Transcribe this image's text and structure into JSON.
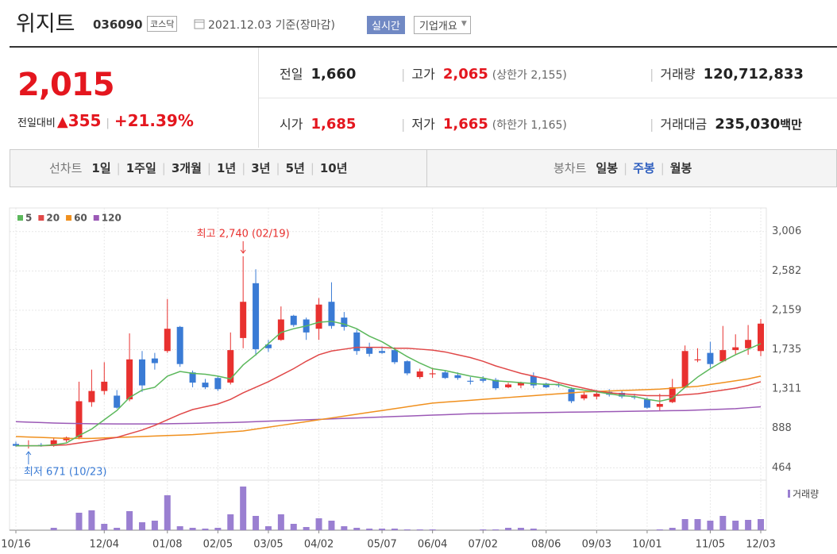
{
  "header": {
    "title": "위지트",
    "code": "036090",
    "market": "코스닥",
    "date": "2021.12.03 기준(장마감)",
    "buttons": [
      "실시간",
      "기업개요"
    ]
  },
  "summary": {
    "price": "2,015",
    "change_label": "전일대비",
    "change": "355",
    "change_pct": "+21.39%",
    "rows": [
      [
        {
          "label": "전일",
          "value": "1,660"
        },
        {
          "label": "고가",
          "value": "2,065",
          "note": "(상한가 2,155)",
          "color": "#e4161e"
        },
        {
          "label": "거래량",
          "value": "120,712,833"
        }
      ],
      [
        {
          "label": "시가",
          "value": "1,685",
          "color": "#e4161e"
        },
        {
          "label": "저가",
          "value": "1,665",
          "note": "(하한가 1,165)",
          "color": "#e4161e"
        },
        {
          "label": "거래대금",
          "value": "235,030",
          "unit": "백만"
        }
      ]
    ]
  },
  "tabs": {
    "line_label": "선차트",
    "line_periods": [
      "1일",
      "1주일",
      "3개월",
      "1년",
      "3년",
      "5년",
      "10년"
    ],
    "candle_label": "봉차트",
    "candle_periods": [
      "일봉",
      "주봉",
      "월봉"
    ],
    "selected_candle": 1,
    "selected_color": "#2f5fbf"
  },
  "chart_data": {
    "type": "candlestick",
    "categories": [
      "10/16",
      null,
      null,
      null,
      null,
      null,
      null,
      "12/04",
      null,
      null,
      null,
      null,
      "01/08",
      null,
      null,
      null,
      "02/05",
      null,
      null,
      null,
      "03/05",
      null,
      null,
      null,
      "04/02",
      null,
      null,
      null,
      null,
      "05/07",
      null,
      null,
      null,
      "06/04",
      null,
      null,
      null,
      "07/02",
      null,
      null,
      null,
      null,
      "08/06",
      null,
      null,
      null,
      "09/03",
      null,
      null,
      null,
      "10/01",
      null,
      null,
      null,
      null,
      "11/05",
      null,
      null,
      null,
      "12/03"
    ],
    "open": [
      720,
      700,
      710,
      700,
      760,
      790,
      1170,
      1290,
      1240,
      1200,
      1630,
      1640,
      1720,
      1980,
      1490,
      1380,
      1430,
      1380,
      1860,
      2450,
      1790,
      1840,
      2100,
      2060,
      1960,
      2250,
      2080,
      1920,
      1760,
      1720,
      1730,
      1610,
      1440,
      1470,
      1490,
      1460,
      1400,
      1420,
      1410,
      1330,
      1350,
      1450,
      1370,
      1360,
      1310,
      1210,
      1230,
      1280,
      1270,
      1230,
      1200,
      1120,
      1170,
      1330,
      1620,
      1700,
      1610,
      1730,
      1750,
      1720
    ],
    "high": [
      745,
      760,
      730,
      780,
      800,
      1390,
      1520,
      1600,
      1300,
      1910,
      1720,
      1700,
      2280,
      1990,
      1510,
      1420,
      1450,
      1920,
      2740,
      2600,
      1840,
      2200,
      2110,
      2080,
      2290,
      2460,
      2140,
      1950,
      1810,
      1770,
      1760,
      1620,
      1530,
      1540,
      1510,
      1490,
      1440,
      1450,
      1430,
      1380,
      1390,
      1490,
      1380,
      1380,
      1330,
      1280,
      1300,
      1310,
      1290,
      1260,
      1220,
      1260,
      1420,
      1780,
      1750,
      1820,
      1990,
      1900,
      2000,
      2065
    ],
    "low": [
      690,
      671,
      690,
      690,
      740,
      770,
      1120,
      1250,
      1100,
      1180,
      1280,
      1520,
      1700,
      1550,
      1330,
      1310,
      1290,
      1360,
      1750,
      1670,
      1710,
      1830,
      1980,
      1840,
      1840,
      1960,
      1940,
      1680,
      1660,
      1690,
      1580,
      1460,
      1420,
      1430,
      1420,
      1410,
      1360,
      1380,
      1300,
      1320,
      1320,
      1320,
      1320,
      1330,
      1160,
      1190,
      1200,
      1230,
      1210,
      1200,
      1100,
      1080,
      1160,
      1320,
      1600,
      1540,
      1600,
      1680,
      1680,
      1665
    ],
    "close": [
      700,
      705,
      700,
      760,
      790,
      1180,
      1290,
      1390,
      1110,
      1630,
      1350,
      1590,
      1960,
      1580,
      1380,
      1330,
      1310,
      1730,
      2250,
      1740,
      1750,
      2060,
      2000,
      1920,
      2220,
      1990,
      1980,
      1720,
      1690,
      1700,
      1600,
      1480,
      1500,
      1480,
      1430,
      1430,
      1390,
      1400,
      1320,
      1360,
      1380,
      1350,
      1330,
      1350,
      1180,
      1250,
      1260,
      1250,
      1230,
      1220,
      1110,
      1150,
      1330,
      1720,
      1630,
      1580,
      1730,
      1760,
      1840,
      2015
    ],
    "up_color": "#e8312f",
    "down_color": "#3a7bd5",
    "moving_averages": [
      {
        "name": "5",
        "color": "#5cb85c",
        "values": [
          700,
          700,
          702,
          710,
          730,
          810,
          880,
          980,
          1080,
          1220,
          1300,
          1330,
          1450,
          1500,
          1480,
          1470,
          1450,
          1420,
          1570,
          1680,
          1800,
          1920,
          1960,
          1990,
          2030,
          2040,
          2010,
          1960,
          1880,
          1820,
          1740,
          1660,
          1590,
          1530,
          1510,
          1480,
          1450,
          1430,
          1400,
          1390,
          1380,
          1370,
          1360,
          1360,
          1320,
          1300,
          1280,
          1260,
          1240,
          1230,
          1200,
          1180,
          1210,
          1330,
          1440,
          1530,
          1610,
          1680,
          1740,
          1800
        ]
      },
      {
        "name": "20",
        "color": "#e04848",
        "values": [
          700,
          700,
          700,
          705,
          710,
          730,
          750,
          770,
          790,
          830,
          870,
          920,
          980,
          1040,
          1090,
          1120,
          1150,
          1200,
          1270,
          1330,
          1390,
          1460,
          1530,
          1610,
          1680,
          1720,
          1740,
          1760,
          1760,
          1760,
          1750,
          1750,
          1740,
          1730,
          1710,
          1680,
          1650,
          1610,
          1560,
          1520,
          1480,
          1450,
          1420,
          1380,
          1350,
          1320,
          1290,
          1270,
          1260,
          1250,
          1240,
          1240,
          1240,
          1250,
          1260,
          1280,
          1300,
          1320,
          1350,
          1390
        ]
      },
      {
        "name": "60",
        "color": "#f0901e",
        "values": [
          800,
          795,
          790,
          785,
          780,
          780,
          780,
          785,
          790,
          795,
          800,
          805,
          810,
          815,
          820,
          830,
          840,
          850,
          860,
          880,
          900,
          920,
          940,
          960,
          980,
          1000,
          1020,
          1040,
          1060,
          1080,
          1100,
          1120,
          1140,
          1160,
          1170,
          1180,
          1190,
          1200,
          1210,
          1220,
          1230,
          1240,
          1250,
          1260,
          1270,
          1280,
          1285,
          1290,
          1295,
          1300,
          1305,
          1310,
          1320,
          1330,
          1340,
          1360,
          1380,
          1400,
          1420,
          1450
        ]
      },
      {
        "name": "120",
        "color": "#9b59b6",
        "values": [
          960,
          955,
          950,
          945,
          942,
          940,
          938,
          936,
          935,
          935,
          935,
          936,
          938,
          940,
          942,
          945,
          948,
          950,
          955,
          960,
          965,
          970,
          975,
          980,
          985,
          990,
          995,
          1000,
          1005,
          1010,
          1015,
          1020,
          1025,
          1030,
          1035,
          1040,
          1045,
          1048,
          1050,
          1052,
          1054,
          1056,
          1058,
          1060,
          1062,
          1064,
          1066,
          1068,
          1070,
          1072,
          1074,
          1076,
          1078,
          1080,
          1085,
          1090,
          1095,
          1100,
          1110,
          1120
        ]
      }
    ],
    "volume": {
      "name": "거래량",
      "color": "#9a7fd1",
      "values": [
        0,
        0,
        0,
        3,
        0,
        22,
        25,
        8,
        3,
        24,
        10,
        12,
        44,
        5,
        3,
        2,
        3,
        20,
        55,
        18,
        5,
        20,
        8,
        4,
        15,
        12,
        5,
        3,
        2,
        2,
        2,
        1,
        1,
        1,
        0,
        0,
        0,
        1,
        1,
        3,
        3,
        2,
        0,
        0,
        0,
        0,
        0,
        0,
        0,
        0,
        0,
        1,
        3,
        14,
        14,
        12,
        18,
        12,
        13,
        14
      ]
    },
    "ylim": [
      330,
      3260
    ],
    "yticks": [
      {
        "value": 3006,
        "label": "3,006"
      },
      {
        "value": 2582,
        "label": "2,582"
      },
      {
        "value": 2159,
        "label": "2,159"
      },
      {
        "value": 1735,
        "label": "1,735"
      },
      {
        "value": 1311,
        "label": "1,311"
      },
      {
        "value": 888,
        "label": "888"
      },
      {
        "value": 464,
        "label": "464"
      }
    ],
    "grid": true,
    "max_label": "최고 2,740 (02/19)",
    "min_label": "최저 671 (10/23)"
  }
}
